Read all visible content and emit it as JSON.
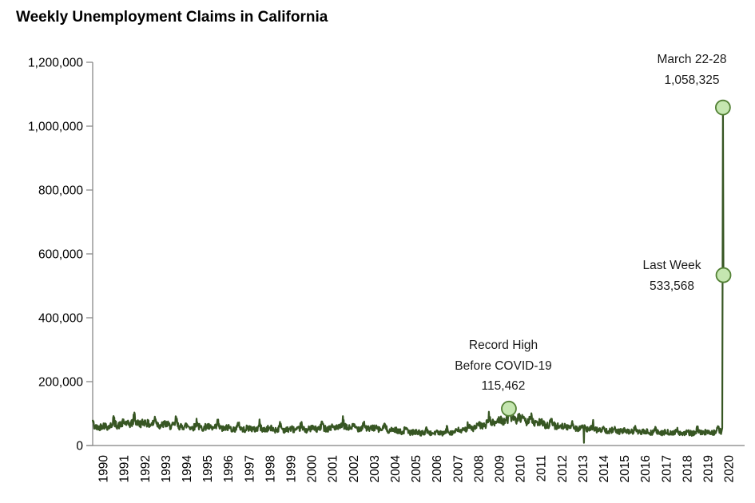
{
  "chart_data": {
    "type": "line",
    "title": "Weekly Unemployment Claims in California",
    "x_axis": {
      "range": [
        1990,
        2020.4
      ],
      "tick_labels": [
        "1990",
        "1991",
        "1992",
        "1993",
        "1994",
        "1995",
        "1996",
        "1997",
        "1998",
        "1999",
        "2000",
        "2001",
        "2002",
        "2003",
        "2004",
        "2005",
        "2006",
        "2007",
        "2008",
        "2009",
        "2010",
        "2011",
        "2012",
        "2013",
        "2014",
        "2015",
        "2016",
        "2017",
        "2018",
        "2019",
        "2020"
      ]
    },
    "y_axis": {
      "range": [
        0,
        1200000
      ],
      "ticks": [
        0,
        200000,
        400000,
        600000,
        800000,
        1000000,
        1200000
      ],
      "tick_labels": [
        "0",
        "200,000",
        "400,000",
        "600,000",
        "800,000",
        "1,000,000",
        "1,200,000"
      ]
    },
    "grid": false,
    "legend": false,
    "series": [
      {
        "name": "weekly-initial-claims",
        "color": "#375623",
        "trend_points": [
          [
            1990.0,
            57000
          ],
          [
            1990.8,
            62000
          ],
          [
            1991.5,
            68000
          ],
          [
            1992.2,
            72000
          ],
          [
            1993.0,
            67000
          ],
          [
            1994.0,
            62000
          ],
          [
            1995.0,
            58000
          ],
          [
            1996.0,
            55000
          ],
          [
            1997.0,
            53000
          ],
          [
            1998.0,
            52000
          ],
          [
            1999.0,
            51000
          ],
          [
            2000.0,
            50000
          ],
          [
            2001.0,
            54000
          ],
          [
            2001.9,
            58000
          ],
          [
            2002.8,
            56000
          ],
          [
            2003.8,
            52000
          ],
          [
            2004.8,
            45000
          ],
          [
            2005.8,
            40000
          ],
          [
            2006.8,
            39000
          ],
          [
            2007.6,
            46000
          ],
          [
            2008.5,
            60000
          ],
          [
            2009.4,
            76000
          ],
          [
            2010.0,
            84000
          ],
          [
            2010.5,
            82000
          ],
          [
            2011.2,
            72000
          ],
          [
            2012.0,
            64000
          ],
          [
            2013.0,
            57000
          ],
          [
            2014.0,
            51000
          ],
          [
            2015.0,
            46000
          ],
          [
            2016.0,
            43000
          ],
          [
            2017.0,
            41000
          ],
          [
            2018.0,
            39500
          ],
          [
            2019.0,
            40000
          ],
          [
            2020.1,
            44000
          ]
        ],
        "anomalies": [
          [
            2009.96,
            115462
          ],
          [
            2013.55,
            8500
          ]
        ],
        "tail_points": [
          [
            2020.19,
            55000
          ],
          [
            2020.225,
            1058325
          ],
          [
            2020.25,
            533568
          ]
        ],
        "noise": {
          "seed": 42,
          "base": 2500,
          "level_factor": 0.14
        }
      }
    ],
    "annotations": [
      {
        "id": "march-peak",
        "lines": [
          "March 22-28",
          "1,058,325"
        ],
        "x": 2020.225,
        "value": 1058325
      },
      {
        "id": "last-week",
        "lines": [
          "Last Week",
          "533,568"
        ],
        "x": 2020.25,
        "value": 533568
      },
      {
        "id": "record-high",
        "lines": [
          "Record High",
          "Before COVID-19",
          "115,462"
        ],
        "x": 2009.96,
        "value": 115462
      }
    ],
    "colors": {
      "line": "#375623",
      "marker_fill": "#c5e6b0",
      "marker_stroke": "#538135",
      "axis": "#808080",
      "text": "#000000"
    }
  }
}
